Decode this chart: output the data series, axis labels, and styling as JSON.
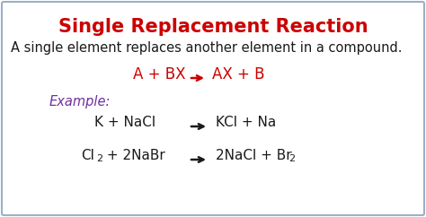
{
  "title": "Single Replacement Reaction",
  "title_color": "#cc0000",
  "title_fontsize": 15,
  "subtitle": "A single element replaces another element in a compound.",
  "subtitle_color": "#1a1a1a",
  "subtitle_fontsize": 10.5,
  "formula_color": "#cc0000",
  "formula_fontsize": 12,
  "example_label": "Example:",
  "example_color": "#7030a0",
  "example_fontsize": 10.5,
  "equation_color": "#1a1a1a",
  "equation_fontsize": 11,
  "arrow_color": "#1a1a1a",
  "background_color": "#ffffff",
  "border_color": "#9ab0c8"
}
